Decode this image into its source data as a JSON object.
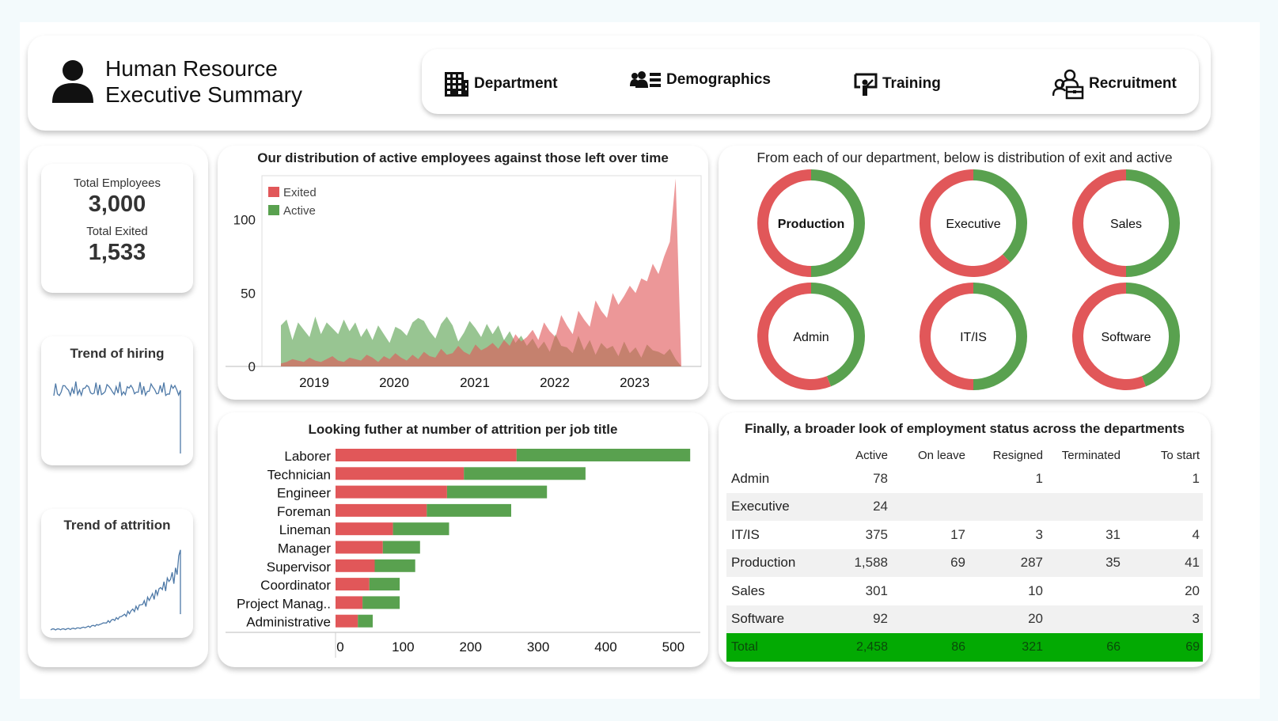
{
  "header": {
    "title_line1": "Human Resource",
    "title_line2": "Executive Summary",
    "user_icon": "person-icon"
  },
  "nav": [
    {
      "label": "Department",
      "icon": "building-icon"
    },
    {
      "label": "Demographics",
      "icon": "people-icon"
    },
    {
      "label": "Training",
      "icon": "presentation-icon"
    },
    {
      "label": "Recruitment",
      "icon": "recruit-icon"
    }
  ],
  "kpis": {
    "total_employees_label": "Total Employees",
    "total_employees_value": "3,000",
    "total_exited_label": "Total Exited",
    "total_exited_value": "1,533"
  },
  "sparklines": {
    "hiring_title": "Trend of hiring",
    "attrition_title": "Trend of attrition"
  },
  "colors": {
    "exited": "#e15759",
    "active": "#59a14f",
    "total_row": "#03aa03",
    "sparkline": "#4e79a7"
  },
  "area_chart": {
    "title": "Our distribution of active employees against those left over time",
    "chart_data": {
      "type": "area",
      "legend": [
        "Exited",
        "Active"
      ],
      "legend_position": "top-left",
      "x_ticks": [
        "2019",
        "2020",
        "2021",
        "2022",
        "2023"
      ],
      "y_ticks": [
        0,
        50,
        100
      ],
      "ylim": [
        0,
        130
      ],
      "series": [
        {
          "name": "Exited",
          "values": [
            2,
            3,
            5,
            4,
            3,
            6,
            4,
            3,
            5,
            7,
            4,
            3,
            6,
            5,
            4,
            8,
            6,
            3,
            7,
            5,
            9,
            6,
            4,
            8,
            5,
            10,
            7,
            6,
            12,
            8,
            9,
            14,
            10,
            8,
            15,
            11,
            13,
            16,
            12,
            18,
            14,
            22,
            17,
            20,
            25,
            18,
            30,
            24,
            20,
            35,
            28,
            22,
            38,
            32,
            27,
            45,
            38,
            33,
            50,
            42,
            48,
            55,
            50,
            60,
            58,
            70,
            63,
            75,
            85,
            128,
            0
          ]
        },
        {
          "name": "Active",
          "values": [
            28,
            32,
            18,
            30,
            25,
            20,
            34,
            22,
            30,
            26,
            22,
            32,
            24,
            30,
            20,
            26,
            18,
            28,
            22,
            16,
            27,
            25,
            21,
            30,
            33,
            31,
            24,
            19,
            29,
            34,
            28,
            17,
            23,
            31,
            26,
            20,
            29,
            22,
            28,
            18,
            24,
            16,
            21,
            14,
            19,
            12,
            17,
            10,
            22,
            14,
            13,
            9,
            21,
            11,
            18,
            8,
            16,
            12,
            14,
            7,
            17,
            9,
            13,
            6,
            15,
            11,
            10,
            8,
            12,
            5,
            0
          ]
        }
      ]
    }
  },
  "donuts": {
    "title": "From each of our department, below is distribution of exit and active",
    "chart_data": {
      "type": "pie",
      "series_names": [
        "Exited",
        "Active"
      ],
      "items": [
        {
          "label": "Production",
          "exited_share": 0.5,
          "active_share": 0.5
        },
        {
          "label": "Executive",
          "exited_share": 0.62,
          "active_share": 0.38
        },
        {
          "label": "Sales",
          "exited_share": 0.5,
          "active_share": 0.5
        },
        {
          "label": "Admin",
          "exited_share": 0.56,
          "active_share": 0.44
        },
        {
          "label": "IT/IS",
          "exited_share": 0.5,
          "active_share": 0.5
        },
        {
          "label": "Software",
          "exited_share": 0.56,
          "active_share": 0.44
        }
      ]
    }
  },
  "bar_chart": {
    "title": "Looking futher at number of attrition per job title",
    "chart_data": {
      "type": "bar",
      "orientation": "horizontal",
      "categories": [
        "Laborer",
        "Technician",
        "Engineer",
        "Foreman",
        "Lineman",
        "Manager",
        "Supervisor",
        "Coordinator",
        "Project Manag..",
        "Administrative"
      ],
      "series": [
        {
          "name": "Exited",
          "values": [
            268,
            190,
            165,
            135,
            85,
            70,
            58,
            50,
            40,
            33
          ]
        },
        {
          "name": "Active",
          "values": [
            257,
            180,
            148,
            125,
            83,
            55,
            60,
            45,
            55,
            22
          ]
        }
      ],
      "x_ticks": [
        0,
        100,
        200,
        300,
        400,
        500
      ],
      "xlim": [
        0,
        540
      ]
    }
  },
  "status_table": {
    "title": "Finally, a broader look of employment status across the departments",
    "columns": [
      "Active",
      "On leave",
      "Resigned",
      "Terminated",
      "To start"
    ],
    "rows": [
      {
        "name": "Admin",
        "values": [
          "78",
          "",
          "1",
          "",
          "1"
        ]
      },
      {
        "name": "Executive",
        "values": [
          "24",
          "",
          "",
          "",
          ""
        ]
      },
      {
        "name": "IT/IS",
        "values": [
          "375",
          "17",
          "3",
          "31",
          "4"
        ]
      },
      {
        "name": "Production",
        "values": [
          "1,588",
          "69",
          "287",
          "35",
          "41"
        ]
      },
      {
        "name": "Sales",
        "values": [
          "301",
          "",
          "10",
          "",
          "20"
        ]
      },
      {
        "name": "Software",
        "values": [
          "92",
          "",
          "20",
          "",
          "3"
        ]
      }
    ],
    "total": {
      "name": "Total",
      "values": [
        "2,458",
        "86",
        "321",
        "66",
        "69"
      ]
    }
  }
}
